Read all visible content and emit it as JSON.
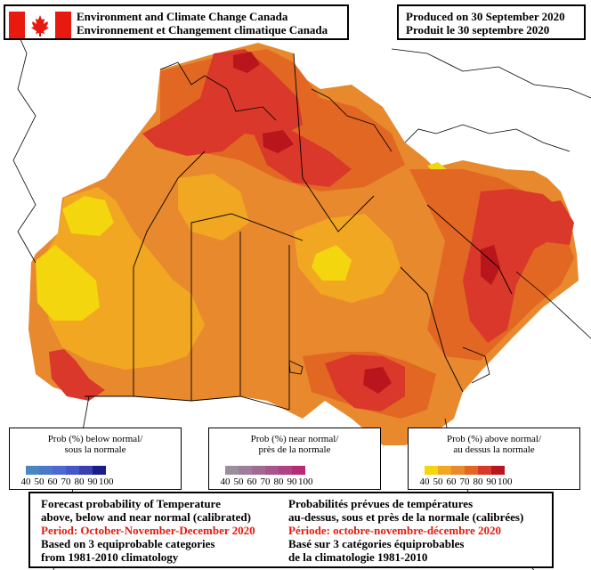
{
  "header": {
    "agency_en": "Environment and Climate Change Canada",
    "agency_fr": "Environnement et Changement climatique Canada",
    "produced_en": "Produced on 30 September 2020",
    "produced_fr": "Produit le 30 septembre 2020"
  },
  "legend_below": {
    "title_en": "Prob (%) below normal/",
    "title_fr": "sous la normale",
    "ticks": [
      "40",
      "50",
      "60",
      "70",
      "80",
      "90",
      "100"
    ],
    "colors": [
      "#4a86c2",
      "#4a78c8",
      "#4b6ad0",
      "#4756c6",
      "#3a3fb0",
      "#1a1c88"
    ]
  },
  "legend_near": {
    "title_en": "Prob (%) near normal/",
    "title_fr": "près de la normale",
    "ticks": [
      "40",
      "50",
      "60",
      "70",
      "80",
      "90",
      "100"
    ],
    "colors": [
      "#9a8e9e",
      "#9d7d9a",
      "#a16a94",
      "#a6568c",
      "#ae4284",
      "#b72a78"
    ]
  },
  "legend_above": {
    "title_en": "Prob (%) above normal/",
    "title_fr": "au dessus la normale",
    "ticks": [
      "40",
      "50",
      "60",
      "70",
      "80",
      "90",
      "100"
    ],
    "colors": [
      "#f5d60a",
      "#f1a722",
      "#e8892e",
      "#e26723",
      "#d9382a",
      "#b8151c"
    ]
  },
  "footer": {
    "left": [
      "Forecast probability of Temperature",
      "above, below and near normal (calibrated)",
      "Period: October-November-December 2020",
      "Based on 3 equiprobable categories",
      " from 1981-2010 climatology"
    ],
    "right": [
      "Probabilités prévues de températures",
      "au-dessus, sous et près de la normale (calibrées)",
      "Période: octobre-novembre-décembre 2020",
      "Basé sur 3 catégories équiprobables",
      "de la climatologie 1981-2010"
    ]
  },
  "map_colors": {
    "yellow": "#f3d60e",
    "light_orange": "#f1a722",
    "orange": "#e8892e",
    "dark_orange": "#e26723",
    "red": "#d9382a",
    "dark_red": "#b8151c"
  }
}
